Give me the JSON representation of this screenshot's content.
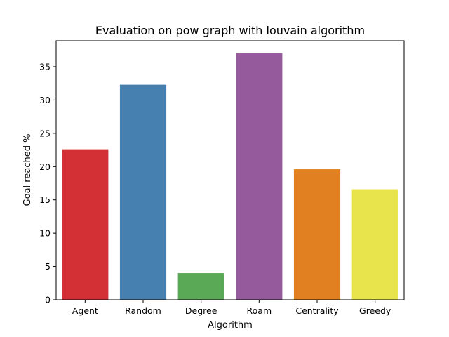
{
  "chart_data": {
    "type": "bar",
    "title": "Evaluation on pow graph with louvain algorithm",
    "xlabel": "Algorithm",
    "ylabel": "Goal reached %",
    "categories": [
      "Agent",
      "Random",
      "Degree",
      "Roam",
      "Centrality",
      "Greedy"
    ],
    "values": [
      22.6,
      32.3,
      4.0,
      37.0,
      19.6,
      16.6
    ],
    "colors": [
      "#d33035",
      "#4680b0",
      "#5aa957",
      "#945a9b",
      "#e18020",
      "#e8e54c"
    ],
    "ylim": [
      0,
      38.9
    ],
    "yticks": [
      0,
      5,
      10,
      15,
      20,
      25,
      30,
      35
    ],
    "grid": false,
    "legend": "none"
  }
}
